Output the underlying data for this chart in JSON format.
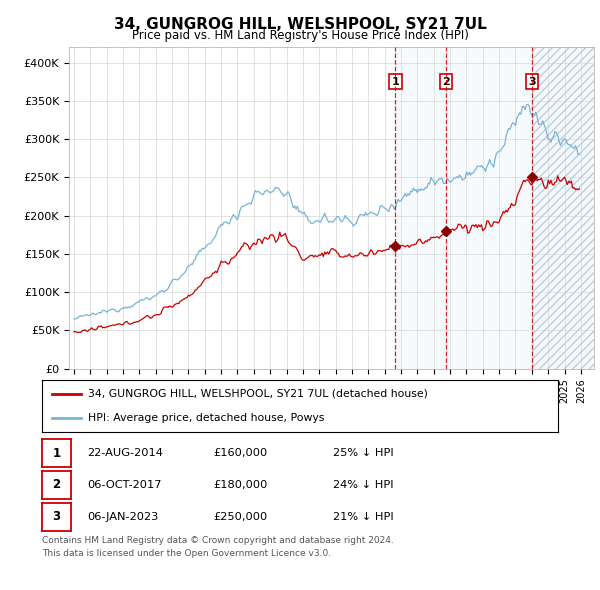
{
  "title": "34, GUNGROG HILL, WELSHPOOL, SY21 7UL",
  "subtitle": "Price paid vs. HM Land Registry's House Price Index (HPI)",
  "ylim": [
    0,
    420000
  ],
  "yticks": [
    0,
    50000,
    100000,
    150000,
    200000,
    250000,
    300000,
    350000,
    400000
  ],
  "ytick_labels": [
    "£0",
    "£50K",
    "£100K",
    "£150K",
    "£200K",
    "£250K",
    "£300K",
    "£350K",
    "£400K"
  ],
  "xlim_start": 1994.7,
  "xlim_end": 2026.8,
  "hpi_color": "#7ab3d4",
  "price_color": "#cc0000",
  "transaction_marker_color": "#8b0000",
  "vline_color": "#cc0000",
  "shade_color": "#d8e8f5",
  "transactions": [
    {
      "date_num": 2014.645,
      "price": 160000,
      "label": "1"
    },
    {
      "date_num": 2017.756,
      "price": 180000,
      "label": "2"
    },
    {
      "date_num": 2023.014,
      "price": 250000,
      "label": "3"
    }
  ],
  "transaction_details": [
    {
      "label": "1",
      "date": "22-AUG-2014",
      "price": "£160,000",
      "pct": "25% ↓ HPI"
    },
    {
      "label": "2",
      "date": "06-OCT-2017",
      "price": "£180,000",
      "pct": "24% ↓ HPI"
    },
    {
      "label": "3",
      "date": "06-JAN-2023",
      "price": "£250,000",
      "pct": "21% ↓ HPI"
    }
  ],
  "legend_entries": [
    {
      "label": "34, GUNGROG HILL, WELSHPOOL, SY21 7UL (detached house)",
      "color": "#cc0000"
    },
    {
      "label": "HPI: Average price, detached house, Powys",
      "color": "#7ab3d4"
    }
  ],
  "footnote": "Contains HM Land Registry data © Crown copyright and database right 2024.\nThis data is licensed under the Open Government Licence v3.0.",
  "background_color": "#ffffff",
  "grid_color": "#cccccc"
}
